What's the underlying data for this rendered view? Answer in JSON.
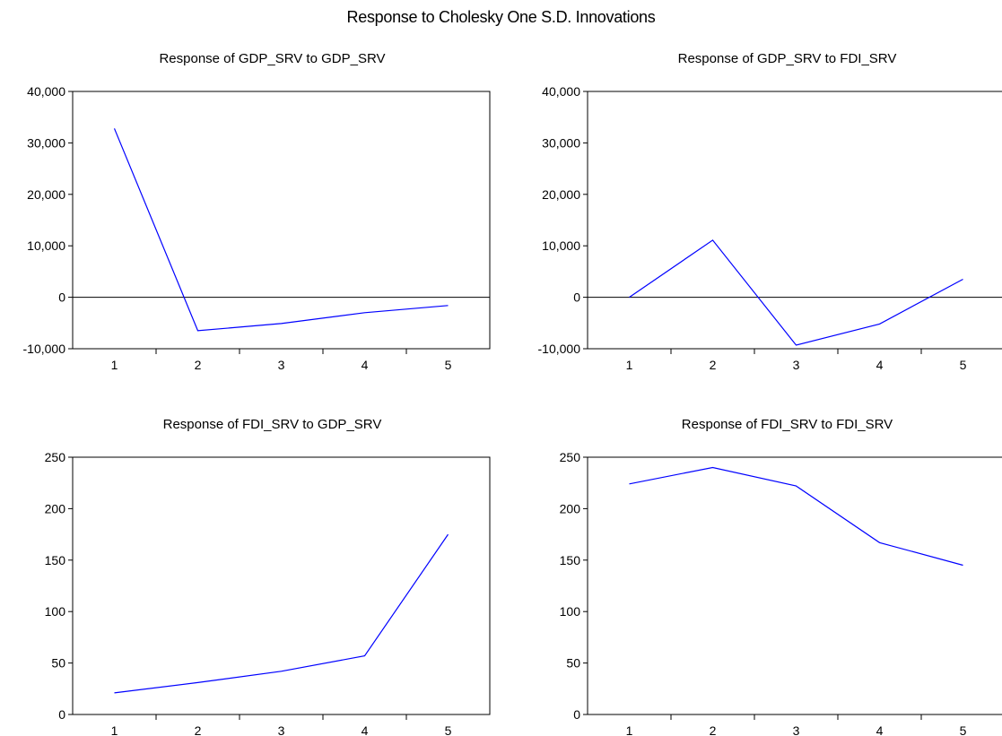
{
  "title": "Response to Cholesky One S.D. Innovations",
  "colors": {
    "line": "#0000ff",
    "axis": "#000000",
    "zero_line": "#000000",
    "background": "#ffffff"
  },
  "chart_data": [
    {
      "type": "line",
      "title": "Response of GDP_SRV to GDP_SRV",
      "xlabel": "",
      "ylabel": "",
      "x": [
        1,
        2,
        3,
        4,
        5
      ],
      "values": [
        32800,
        -6500,
        -5100,
        -3000,
        -1600
      ],
      "ylim": [
        -10000,
        40000
      ],
      "yticks": [
        -10000,
        0,
        10000,
        20000,
        30000,
        40000
      ],
      "ytick_labels": [
        "-10,000",
        "0",
        "10,000",
        "20,000",
        "30,000",
        "40,000"
      ],
      "xticks": [
        "1",
        "2",
        "3",
        "4",
        "5"
      ],
      "zero_line": true,
      "grid": false
    },
    {
      "type": "line",
      "title": "Response of GDP_SRV to FDI_SRV",
      "xlabel": "",
      "ylabel": "",
      "x": [
        1,
        2,
        3,
        4,
        5
      ],
      "values": [
        0,
        11100,
        -9300,
        -5200,
        3500
      ],
      "ylim": [
        -10000,
        40000
      ],
      "yticks": [
        -10000,
        0,
        10000,
        20000,
        30000,
        40000
      ],
      "ytick_labels": [
        "-10,000",
        "0",
        "10,000",
        "20,000",
        "30,000",
        "40,000"
      ],
      "xticks": [
        "1",
        "2",
        "3",
        "4",
        "5"
      ],
      "zero_line": true,
      "grid": false
    },
    {
      "type": "line",
      "title": "Response of FDI_SRV to GDP_SRV",
      "xlabel": "",
      "ylabel": "",
      "x": [
        1,
        2,
        3,
        4,
        5
      ],
      "values": [
        21,
        31,
        42,
        57,
        175
      ],
      "ylim": [
        0,
        250
      ],
      "yticks": [
        0,
        50,
        100,
        150,
        200,
        250
      ],
      "ytick_labels": [
        "0",
        "50",
        "100",
        "150",
        "200",
        "250"
      ],
      "xticks": [
        "1",
        "2",
        "3",
        "4",
        "5"
      ],
      "zero_line": false,
      "grid": false
    },
    {
      "type": "line",
      "title": "Response of FDI_SRV to FDI_SRV",
      "xlabel": "",
      "ylabel": "",
      "x": [
        1,
        2,
        3,
        4,
        5
      ],
      "values": [
        224,
        240,
        222,
        167,
        145
      ],
      "ylim": [
        0,
        250
      ],
      "yticks": [
        0,
        50,
        100,
        150,
        200,
        250
      ],
      "ytick_labels": [
        "0",
        "50",
        "100",
        "150",
        "200",
        "250"
      ],
      "xticks": [
        "1",
        "2",
        "3",
        "4",
        "5"
      ],
      "zero_line": false,
      "grid": false
    }
  ]
}
